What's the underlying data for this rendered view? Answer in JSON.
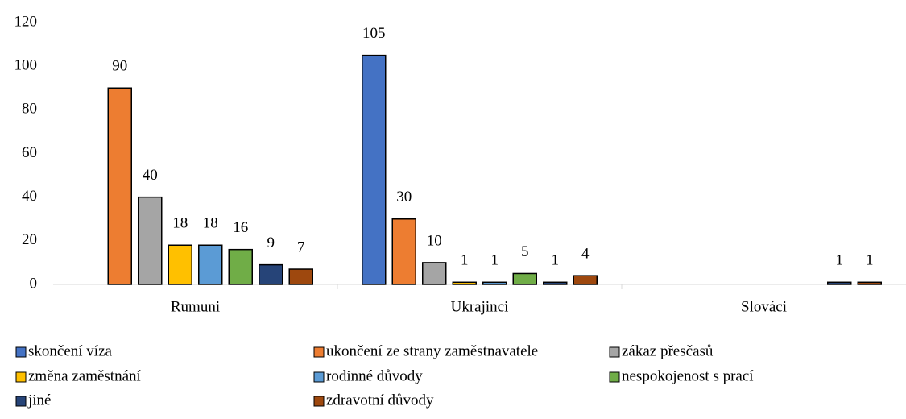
{
  "chart_data": {
    "type": "bar",
    "categories": [
      "Rumuni",
      "Ukrajinci",
      "Slováci"
    ],
    "series": [
      {
        "name": "skončení víza",
        "color": "#4472c4",
        "values": [
          null,
          105,
          null
        ]
      },
      {
        "name": "ukončení ze strany zaměstnavatele",
        "color": "#ed7d31",
        "values": [
          90,
          30,
          null
        ]
      },
      {
        "name": "zákaz přesčasů",
        "color": "#a5a5a5",
        "values": [
          40,
          10,
          null
        ]
      },
      {
        "name": "změna zaměstnání",
        "color": "#ffc000",
        "values": [
          18,
          1,
          null
        ]
      },
      {
        "name": "rodinné důvody",
        "color": "#5b9bd5",
        "values": [
          18,
          1,
          null
        ]
      },
      {
        "name": "nespokojenost s prací",
        "color": "#70ad47",
        "values": [
          16,
          5,
          null
        ]
      },
      {
        "name": "jiné",
        "color": "#264478",
        "values": [
          9,
          1,
          1
        ]
      },
      {
        "name": "zdravotní důvody",
        "color": "#9e480e",
        "values": [
          7,
          4,
          1
        ]
      }
    ],
    "ylim": [
      0,
      120
    ],
    "yticks": [
      0,
      20,
      40,
      60,
      80,
      100,
      120
    ],
    "grid": false,
    "legend": "bottom"
  }
}
